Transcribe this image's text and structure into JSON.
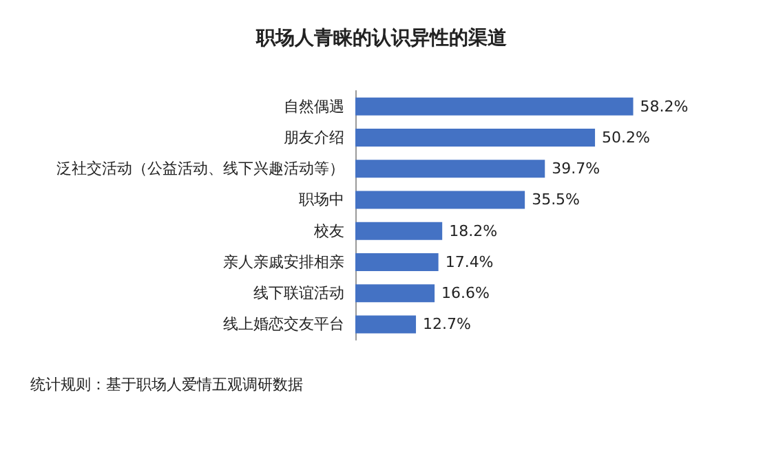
{
  "chart_data": {
    "type": "bar",
    "orientation": "horizontal",
    "title": "职场人青睐的认识异性的渠道",
    "categories": [
      "自然偶遇",
      "朋友介绍",
      "泛社交活动（公益活动、线下兴趣活动等）",
      "职场中",
      "校友",
      "亲人亲戚安排相亲",
      "线下联谊活动",
      "线上婚恋交友平台"
    ],
    "values": [
      58.2,
      50.2,
      39.7,
      35.5,
      18.2,
      17.4,
      16.6,
      12.7
    ],
    "value_labels": [
      "58.2%",
      "50.2%",
      "39.7%",
      "35.5%",
      "18.2%",
      "17.4%",
      "16.6%",
      "12.7%"
    ],
    "color": "#4472c4",
    "annotations": [
      "统计规则：基于职场人爱情五观调研数据"
    ]
  }
}
